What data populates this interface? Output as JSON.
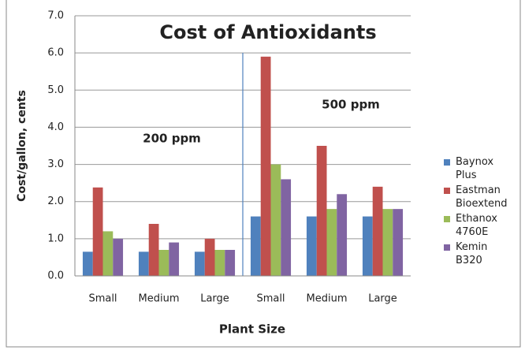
{
  "chart_data": {
    "type": "bar",
    "title": "Cost of Antioxidants",
    "xlabel": "Plant Size",
    "ylabel": "Cost/gallon, cents",
    "annotations": [
      "200 ppm",
      "500 ppm"
    ],
    "categories": [
      "Small",
      "Medium",
      "Large",
      "Small",
      "Medium",
      "Large"
    ],
    "series": [
      {
        "name": "Baynox Plus",
        "color": "#4f81bd",
        "values": [
          0.65,
          0.65,
          0.65,
          1.6,
          1.6,
          1.6
        ]
      },
      {
        "name": "Eastman Bioextend",
        "color": "#c0504d",
        "values": [
          2.38,
          1.4,
          1.0,
          5.9,
          3.5,
          2.4
        ]
      },
      {
        "name": "Ethanox 4760E",
        "color": "#9bbb59",
        "values": [
          1.2,
          0.7,
          0.7,
          3.0,
          1.8,
          1.8
        ]
      },
      {
        "name": "Kemin B320",
        "color": "#8064a2",
        "values": [
          1.0,
          0.9,
          0.7,
          2.6,
          2.2,
          1.8
        ]
      }
    ],
    "ylim": [
      0,
      7
    ],
    "yticks": [
      {
        "value": 0,
        "label": "0.0"
      },
      {
        "value": 1,
        "label": "1.0"
      },
      {
        "value": 2,
        "label": "2.0"
      },
      {
        "value": 3,
        "label": "3.0"
      },
      {
        "value": 4,
        "label": "4.0"
      },
      {
        "value": 5,
        "label": "5.0"
      },
      {
        "value": 6,
        "label": "6.0"
      },
      {
        "value": 7,
        "label": "7.0"
      }
    ],
    "grid": true,
    "legend": "right"
  }
}
